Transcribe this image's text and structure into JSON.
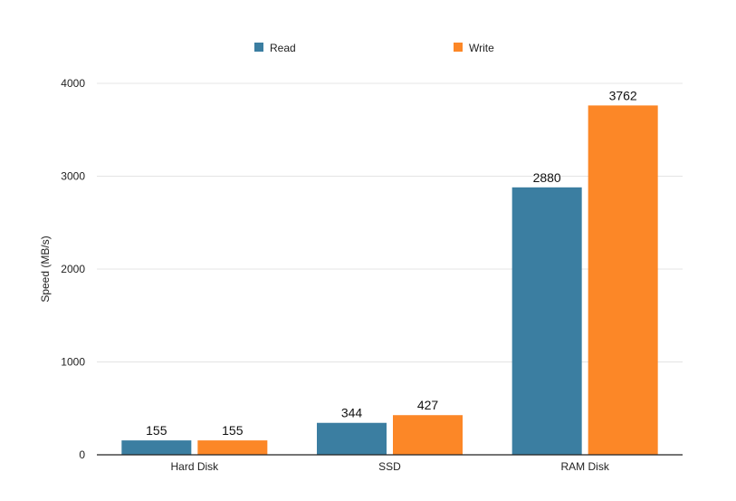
{
  "chart_data": {
    "type": "bar",
    "categories": [
      "Hard Disk",
      "SSD",
      "RAM Disk"
    ],
    "series": [
      {
        "name": "Read",
        "values": [
          155,
          344,
          2880
        ],
        "color": "#3b7ea1"
      },
      {
        "name": "Write",
        "values": [
          155,
          427,
          3762
        ],
        "color": "#fc8727"
      }
    ],
    "title": "",
    "xlabel": "",
    "ylabel": "Speed (MB/s)",
    "ylim": [
      0,
      4000
    ],
    "yticks": [
      "0",
      "1000",
      "2000",
      "3000",
      "4000"
    ],
    "legend_position": "top",
    "grid": true,
    "data_labels": true
  }
}
